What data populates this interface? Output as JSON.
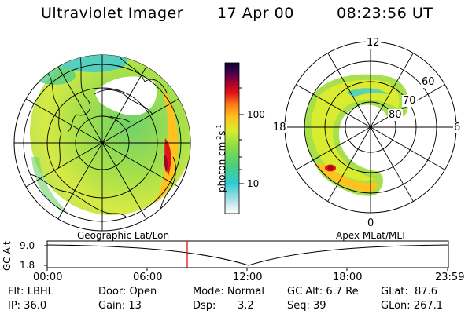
{
  "header": {
    "title": "Ultraviolet Imager",
    "date": "17 Apr 00",
    "time": "08:23:56 UT"
  },
  "colorbar": {
    "label": "photon cm",
    "label_sup": "-2",
    "label_s": "s",
    "label_sup2": "-1",
    "ticks": [
      "100",
      "10"
    ]
  },
  "polar_plot": {
    "labels": {
      "top": "12",
      "left": "18",
      "right": "6",
      "bottom": "0"
    },
    "lat_labels": [
      "60",
      "70",
      "80"
    ]
  },
  "timeline": {
    "left_title": "Geographic Lat/Lon",
    "right_title": "Apex MLat/MLT",
    "y_label": "GC Alt",
    "y_ticks": [
      "9.0",
      "1.8"
    ],
    "x_ticks": [
      "00:00",
      "06:00",
      "12:00",
      "18:00",
      "23:59"
    ],
    "marker_color": "#dd0000"
  },
  "info": {
    "flt": "Flt: LBHL",
    "ip": "IP: 36.0",
    "door": "Door: Open",
    "gain": "Gain: 13",
    "mode": "Mode: Normal",
    "dsp_label": "Dsp:",
    "dsp_value": "3.2",
    "gcalt": "GC Alt: 6.7 Re",
    "seq": "Seq: 39",
    "glat": "GLat:  87.6",
    "glon": "GLon: 267.1"
  }
}
